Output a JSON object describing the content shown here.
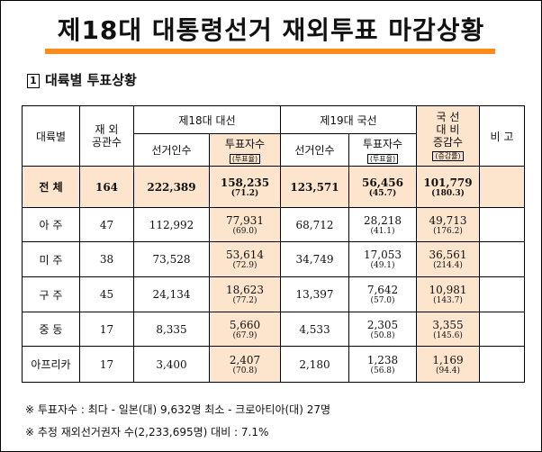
{
  "title": "제18대 대통령선거 재외투표 마감상황",
  "section": {
    "num": "1",
    "label": "대륙별 투표상황"
  },
  "headers": {
    "region": "대륙별",
    "mission": [
      "재 외",
      "공관수"
    ],
    "e18": "제18대 대선",
    "e19": "제19대 국선",
    "diff": [
      "국 선",
      "대 비",
      "증감수"
    ],
    "diff_sub": "(증감률)",
    "remark": "비 고",
    "voters": "선거인수",
    "votes": "투표자수",
    "votes_sub": "(투표율)"
  },
  "rows": [
    {
      "region": "전 체",
      "missions": "164",
      "e18_voters": "222,389",
      "e18_votes": "158,235",
      "e18_rate": "(71.2)",
      "e19_voters": "123,571",
      "e19_votes": "56,456",
      "e19_rate": "(45.7)",
      "diff": "101,779",
      "diff_rate": "(180.3)"
    },
    {
      "region": "아 주",
      "missions": "47",
      "e18_voters": "112,992",
      "e18_votes": "77,931",
      "e18_rate": "(69.0)",
      "e19_voters": "68,712",
      "e19_votes": "28,218",
      "e19_rate": "(41.1)",
      "diff": "49,713",
      "diff_rate": "(176.2)"
    },
    {
      "region": "미 주",
      "missions": "38",
      "e18_voters": "73,528",
      "e18_votes": "53,614",
      "e18_rate": "(72.9)",
      "e19_voters": "34,749",
      "e19_votes": "17,053",
      "e19_rate": "(49.1)",
      "diff": "36,561",
      "diff_rate": "(214.4)"
    },
    {
      "region": "구 주",
      "missions": "45",
      "e18_voters": "24,134",
      "e18_votes": "18,623",
      "e18_rate": "(77.2)",
      "e19_voters": "13,397",
      "e19_votes": "7,642",
      "e19_rate": "(57.0)",
      "diff": "10,981",
      "diff_rate": "(143.7)"
    },
    {
      "region": "중 동",
      "missions": "17",
      "e18_voters": "8,335",
      "e18_votes": "5,660",
      "e18_rate": "(67.9)",
      "e19_voters": "4,533",
      "e19_votes": "2,305",
      "e19_rate": "(50.8)",
      "diff": "3,355",
      "diff_rate": "(145.6)"
    },
    {
      "region": "아프리카",
      "missions": "17",
      "e18_voters": "3,400",
      "e18_votes": "2,407",
      "e18_rate": "(70.8)",
      "e19_voters": "2,180",
      "e19_votes": "1,238",
      "e19_rate": "(56.8)",
      "diff": "1,169",
      "diff_rate": "(94.4)"
    }
  ],
  "notes": [
    "※ 투표자수 : 최다 - 일본(대) 9,632명   최소 - 크로아티아(대) 27명",
    "※ 추정 재외선거권자 수(2,233,695명) 대비 : 7.1%"
  ]
}
